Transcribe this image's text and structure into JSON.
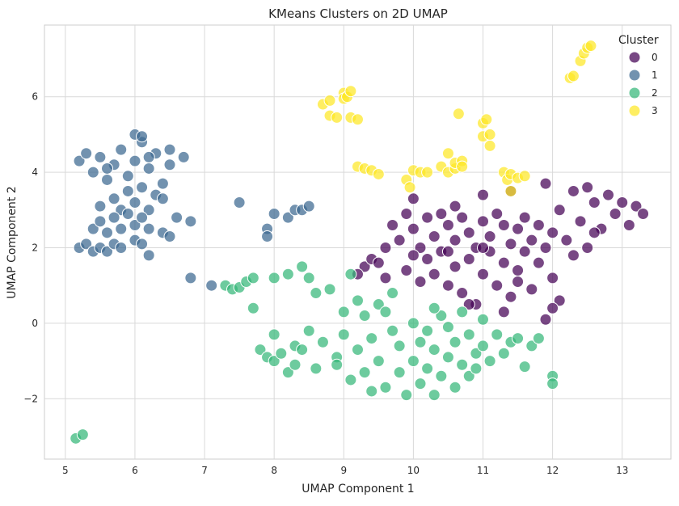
{
  "chart_data": {
    "type": "scatter",
    "title": "KMeans Clusters on 2D UMAP",
    "xlabel": "UMAP Component 1",
    "ylabel": "UMAP Component 2",
    "xlim": [
      4.7,
      13.7
    ],
    "ylim": [
      -3.6,
      7.9
    ],
    "xticks": [
      5,
      6,
      7,
      8,
      9,
      10,
      11,
      12,
      13
    ],
    "yticks": [
      -2,
      0,
      2,
      4,
      6
    ],
    "grid": true,
    "legend": {
      "title": "Cluster",
      "placement": "top-right"
    },
    "series": [
      {
        "name": "0",
        "color": "#440154",
        "points": [
          [
            9.3,
            1.5
          ],
          [
            9.4,
            1.7
          ],
          [
            9.5,
            1.6
          ],
          [
            9.6,
            1.2
          ],
          [
            9.7,
            2.6
          ],
          [
            9.8,
            2.2
          ],
          [
            9.9,
            2.9
          ],
          [
            9.9,
            1.4
          ],
          [
            10.0,
            3.3
          ],
          [
            10.0,
            2.5
          ],
          [
            10.1,
            2.0
          ],
          [
            10.1,
            1.1
          ],
          [
            10.2,
            2.8
          ],
          [
            10.2,
            1.7
          ],
          [
            10.3,
            2.3
          ],
          [
            10.3,
            1.3
          ],
          [
            10.4,
            2.9
          ],
          [
            10.4,
            1.9
          ],
          [
            10.5,
            2.6
          ],
          [
            10.5,
            1.0
          ],
          [
            10.6,
            3.1
          ],
          [
            10.6,
            2.2
          ],
          [
            10.6,
            1.5
          ],
          [
            10.7,
            2.8
          ],
          [
            10.7,
            0.8
          ],
          [
            10.8,
            2.4
          ],
          [
            10.8,
            1.7
          ],
          [
            10.9,
            2.0
          ],
          [
            10.9,
            0.5
          ],
          [
            11.0,
            3.4
          ],
          [
            11.0,
            2.7
          ],
          [
            11.0,
            1.3
          ],
          [
            11.1,
            2.3
          ],
          [
            11.1,
            1.9
          ],
          [
            11.2,
            2.9
          ],
          [
            11.2,
            1.0
          ],
          [
            11.3,
            2.6
          ],
          [
            11.3,
            1.6
          ],
          [
            11.4,
            3.5
          ],
          [
            11.4,
            2.1
          ],
          [
            11.4,
            0.7
          ],
          [
            11.5,
            2.5
          ],
          [
            11.5,
            1.4
          ],
          [
            11.6,
            2.8
          ],
          [
            11.6,
            1.9
          ],
          [
            11.7,
            2.2
          ],
          [
            11.7,
            0.9
          ],
          [
            11.8,
            2.6
          ],
          [
            11.8,
            1.6
          ],
          [
            11.9,
            3.7
          ],
          [
            11.9,
            2.0
          ],
          [
            11.9,
            0.1
          ],
          [
            12.0,
            2.4
          ],
          [
            12.0,
            1.2
          ],
          [
            12.1,
            3.0
          ],
          [
            12.1,
            0.6
          ],
          [
            12.2,
            2.2
          ],
          [
            12.3,
            3.5
          ],
          [
            12.3,
            1.8
          ],
          [
            12.4,
            2.7
          ],
          [
            12.5,
            3.6
          ],
          [
            12.5,
            2.0
          ],
          [
            12.6,
            3.2
          ],
          [
            12.7,
            2.5
          ],
          [
            12.8,
            3.4
          ],
          [
            12.9,
            2.9
          ],
          [
            13.0,
            3.2
          ],
          [
            13.1,
            2.6
          ],
          [
            13.2,
            3.1
          ],
          [
            13.3,
            2.9
          ],
          [
            9.2,
            1.3
          ],
          [
            9.6,
            2.0
          ],
          [
            10.0,
            1.8
          ],
          [
            10.5,
            1.9
          ],
          [
            11.0,
            2.0
          ],
          [
            11.5,
            1.1
          ],
          [
            12.0,
            0.4
          ],
          [
            11.3,
            0.3
          ],
          [
            10.8,
            0.5
          ],
          [
            12.6,
            2.4
          ]
        ]
      },
      {
        "name": "1",
        "color": "#3b6890",
        "points": [
          [
            5.2,
            4.3
          ],
          [
            5.3,
            4.5
          ],
          [
            5.4,
            4.0
          ],
          [
            5.5,
            4.4
          ],
          [
            5.6,
            3.8
          ],
          [
            5.7,
            4.2
          ],
          [
            5.8,
            4.6
          ],
          [
            5.9,
            3.9
          ],
          [
            6.0,
            4.3
          ],
          [
            6.1,
            4.8
          ],
          [
            6.2,
            4.1
          ],
          [
            6.3,
            4.5
          ],
          [
            6.4,
            3.7
          ],
          [
            6.5,
            4.2
          ],
          [
            6.5,
            4.6
          ],
          [
            5.7,
            3.3
          ],
          [
            5.8,
            3.0
          ],
          [
            5.9,
            3.5
          ],
          [
            6.0,
            3.2
          ],
          [
            6.1,
            3.6
          ],
          [
            6.2,
            3.0
          ],
          [
            6.3,
            3.4
          ],
          [
            6.4,
            3.3
          ],
          [
            5.5,
            3.1
          ],
          [
            5.4,
            2.5
          ],
          [
            5.5,
            2.7
          ],
          [
            5.6,
            2.4
          ],
          [
            5.7,
            2.8
          ],
          [
            5.8,
            2.5
          ],
          [
            5.9,
            2.9
          ],
          [
            6.0,
            2.6
          ],
          [
            6.1,
            2.8
          ],
          [
            6.2,
            2.5
          ],
          [
            5.2,
            2.0
          ],
          [
            5.3,
            2.1
          ],
          [
            5.4,
            1.9
          ],
          [
            5.5,
            2.0
          ],
          [
            5.6,
            1.9
          ],
          [
            5.7,
            2.1
          ],
          [
            5.8,
            2.0
          ],
          [
            6.0,
            2.2
          ],
          [
            6.1,
            2.1
          ],
          [
            6.2,
            1.8
          ],
          [
            6.4,
            2.4
          ],
          [
            6.5,
            2.3
          ],
          [
            6.6,
            2.8
          ],
          [
            6.8,
            2.7
          ],
          [
            6.7,
            4.4
          ],
          [
            6.8,
            1.2
          ],
          [
            7.1,
            1.0
          ],
          [
            7.5,
            3.2
          ],
          [
            7.9,
            2.5
          ],
          [
            7.9,
            2.3
          ],
          [
            8.0,
            2.9
          ],
          [
            8.2,
            2.8
          ],
          [
            8.3,
            3.0
          ],
          [
            8.4,
            3.0
          ],
          [
            8.5,
            3.1
          ],
          [
            6.0,
            5.0
          ],
          [
            6.1,
            4.95
          ],
          [
            5.6,
            4.1
          ],
          [
            6.2,
            4.4
          ]
        ]
      },
      {
        "name": "2",
        "color": "#35b779",
        "points": [
          [
            5.15,
            -3.05
          ],
          [
            5.25,
            -2.95
          ],
          [
            7.3,
            1.0
          ],
          [
            7.4,
            0.9
          ],
          [
            7.5,
            0.95
          ],
          [
            7.6,
            1.1
          ],
          [
            7.7,
            0.4
          ],
          [
            7.7,
            1.2
          ],
          [
            7.8,
            -0.7
          ],
          [
            7.9,
            -0.9
          ],
          [
            8.0,
            -0.3
          ],
          [
            8.0,
            -1.0
          ],
          [
            8.1,
            -0.8
          ],
          [
            8.2,
            -1.3
          ],
          [
            8.3,
            -0.6
          ],
          [
            8.3,
            -1.1
          ],
          [
            8.0,
            1.2
          ],
          [
            8.2,
            1.3
          ],
          [
            8.4,
            1.5
          ],
          [
            8.5,
            1.2
          ],
          [
            8.4,
            -0.7
          ],
          [
            8.5,
            -0.2
          ],
          [
            8.6,
            -1.2
          ],
          [
            8.7,
            -0.5
          ],
          [
            8.8,
            0.9
          ],
          [
            8.9,
            -0.9
          ],
          [
            9.0,
            -0.3
          ],
          [
            9.0,
            0.3
          ],
          [
            9.1,
            -1.5
          ],
          [
            9.1,
            1.3
          ],
          [
            9.2,
            -0.7
          ],
          [
            9.3,
            0.2
          ],
          [
            9.3,
            -1.3
          ],
          [
            9.4,
            -0.4
          ],
          [
            9.5,
            0.5
          ],
          [
            9.5,
            -1.0
          ],
          [
            9.6,
            -1.7
          ],
          [
            9.7,
            -0.2
          ],
          [
            9.7,
            0.8
          ],
          [
            9.8,
            -1.3
          ],
          [
            9.8,
            -0.6
          ],
          [
            9.9,
            -1.9
          ],
          [
            10.0,
            0.0
          ],
          [
            10.0,
            -1.0
          ],
          [
            10.1,
            -0.5
          ],
          [
            10.1,
            -1.6
          ],
          [
            10.2,
            -0.2
          ],
          [
            10.2,
            -1.2
          ],
          [
            10.3,
            -0.7
          ],
          [
            10.3,
            -1.9
          ],
          [
            10.4,
            0.2
          ],
          [
            10.4,
            -1.4
          ],
          [
            10.5,
            -0.9
          ],
          [
            10.5,
            -0.1
          ],
          [
            10.6,
            -1.7
          ],
          [
            10.6,
            -0.5
          ],
          [
            10.7,
            0.3
          ],
          [
            10.7,
            -1.1
          ],
          [
            10.8,
            -0.3
          ],
          [
            10.8,
            -1.4
          ],
          [
            10.9,
            -0.8
          ],
          [
            11.0,
            0.1
          ],
          [
            11.0,
            -0.6
          ],
          [
            11.1,
            -1.0
          ],
          [
            11.2,
            -0.3
          ],
          [
            11.3,
            -0.8
          ],
          [
            11.4,
            -0.5
          ],
          [
            11.5,
            -0.4
          ],
          [
            11.6,
            -1.15
          ],
          [
            11.7,
            -0.6
          ],
          [
            11.8,
            -0.4
          ],
          [
            12.0,
            -1.4
          ],
          [
            12.0,
            -1.6
          ],
          [
            8.6,
            0.8
          ],
          [
            9.2,
            0.6
          ],
          [
            9.6,
            0.3
          ],
          [
            10.3,
            0.4
          ],
          [
            8.9,
            -1.1
          ],
          [
            9.4,
            -1.8
          ],
          [
            10.9,
            -1.2
          ]
        ]
      },
      {
        "name": "3",
        "color": "#fde725",
        "points": [
          [
            8.7,
            5.8
          ],
          [
            8.8,
            5.9
          ],
          [
            8.8,
            5.5
          ],
          [
            8.9,
            5.45
          ],
          [
            9.0,
            6.1
          ],
          [
            9.0,
            5.95
          ],
          [
            9.05,
            6.0
          ],
          [
            9.1,
            6.15
          ],
          [
            9.1,
            5.45
          ],
          [
            9.2,
            5.4
          ],
          [
            9.2,
            4.15
          ],
          [
            9.3,
            4.1
          ],
          [
            9.4,
            4.05
          ],
          [
            9.5,
            3.95
          ],
          [
            9.9,
            3.8
          ],
          [
            9.95,
            3.6
          ],
          [
            10.0,
            4.05
          ],
          [
            10.1,
            4.0
          ],
          [
            10.2,
            4.0
          ],
          [
            10.4,
            4.15
          ],
          [
            10.5,
            4.5
          ],
          [
            10.5,
            4.0
          ],
          [
            10.6,
            4.1
          ],
          [
            10.6,
            4.25
          ],
          [
            10.65,
            5.55
          ],
          [
            10.7,
            4.3
          ],
          [
            10.7,
            4.15
          ],
          [
            11.0,
            5.3
          ],
          [
            11.05,
            5.4
          ],
          [
            11.0,
            4.95
          ],
          [
            11.1,
            4.7
          ],
          [
            11.1,
            5.0
          ],
          [
            11.3,
            4.0
          ],
          [
            11.35,
            3.8
          ],
          [
            11.4,
            3.95
          ],
          [
            11.5,
            3.85
          ],
          [
            11.6,
            3.9
          ],
          [
            11.4,
            3.5
          ],
          [
            12.25,
            6.5
          ],
          [
            12.3,
            6.55
          ],
          [
            12.4,
            6.95
          ],
          [
            12.45,
            7.15
          ],
          [
            12.5,
            7.3
          ],
          [
            12.55,
            7.35
          ]
        ]
      }
    ]
  }
}
